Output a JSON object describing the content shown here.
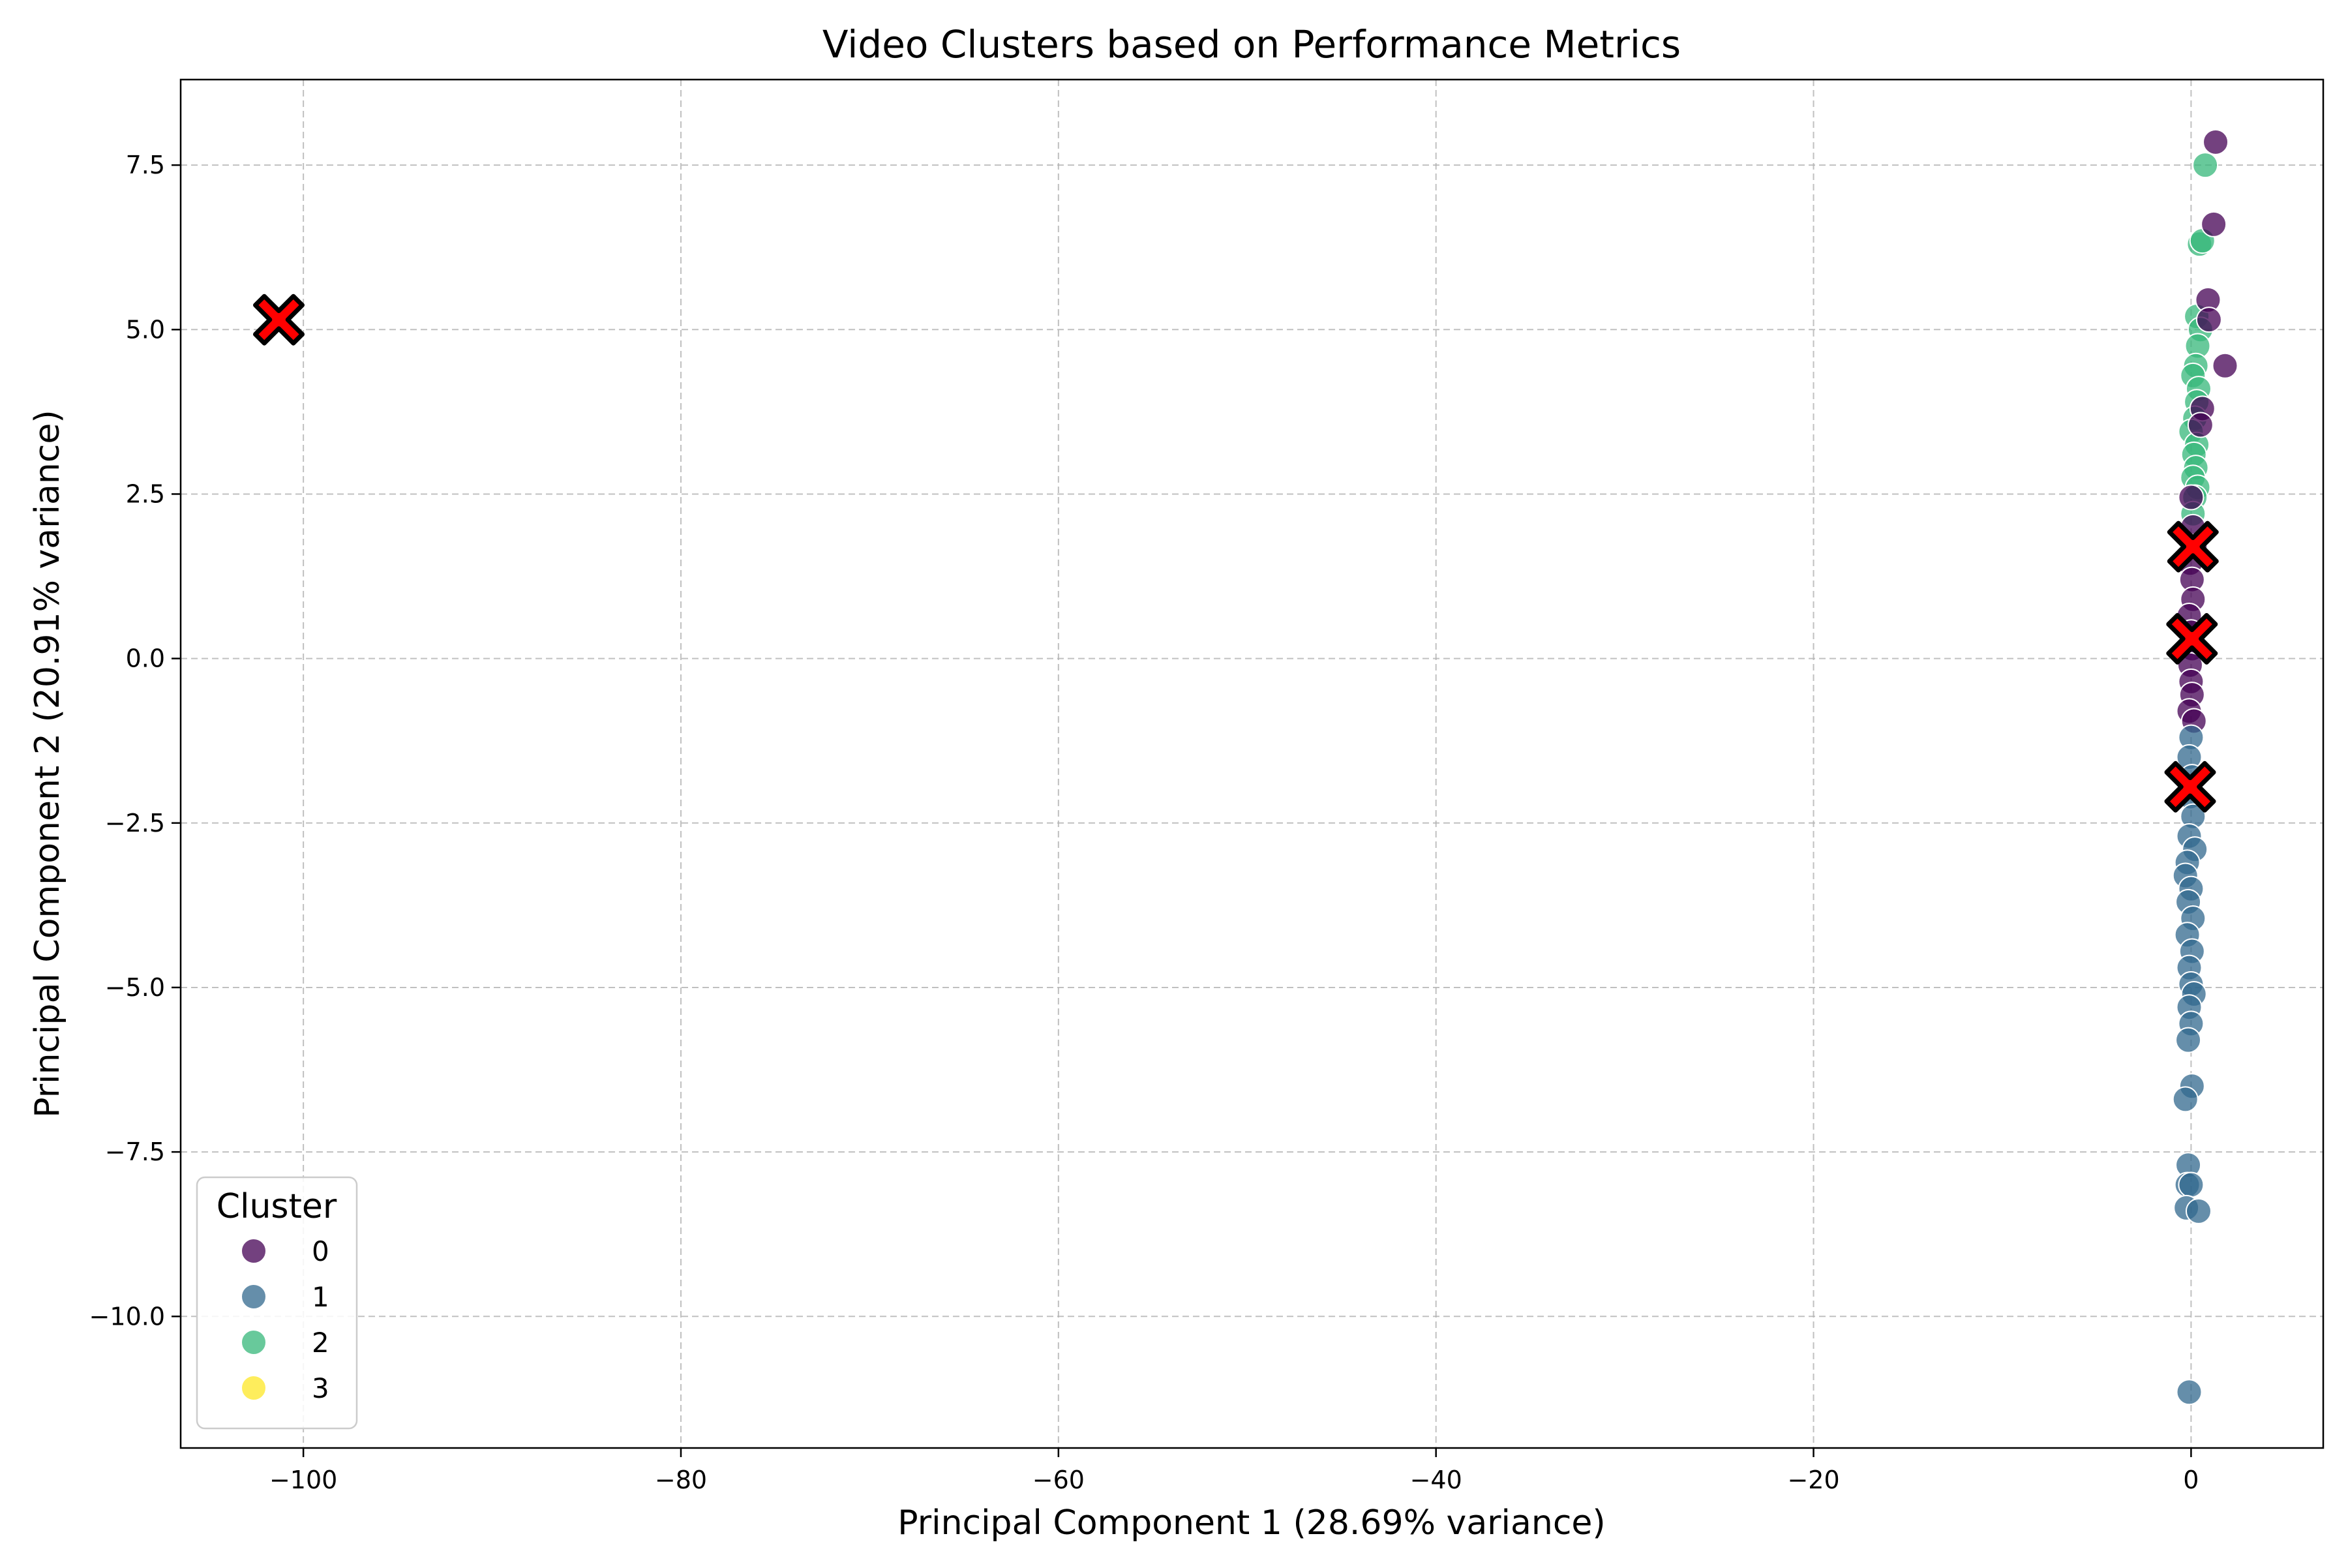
{
  "chart_data": {
    "type": "scatter",
    "title": "Video Clusters based on Performance Metrics",
    "xlabel": "Principal Component 1 (28.69% variance)",
    "ylabel": "Principal Component 2 (20.91% variance)",
    "xlim": [
      -106.5,
      7
    ],
    "ylim": [
      -12,
      8.8
    ],
    "xticks": [
      -100,
      -80,
      -60,
      -40,
      -20,
      0
    ],
    "xtick_labels": [
      "−100",
      "−80",
      "−60",
      "−40",
      "−20",
      "0"
    ],
    "yticks": [
      -10,
      -7.5,
      -5,
      -2.5,
      0,
      2.5,
      5,
      7.5
    ],
    "ytick_labels": [
      "−10.0",
      "−7.5",
      "−5.0",
      "−2.5",
      "0.0",
      "2.5",
      "5.0",
      "7.5"
    ],
    "grid": true,
    "legend": {
      "title": "Cluster",
      "placement": "lower-left",
      "entries": [
        "0",
        "1",
        "2",
        "3"
      ]
    },
    "colors": {
      "cluster_0": "#440154",
      "cluster_1": "#31688e",
      "cluster_2": "#35b779",
      "cluster_3": "#fde725",
      "centroid_fill": "#ff0000",
      "centroid_edge": "#000000",
      "grid": "#b0b0b0"
    },
    "series": [
      {
        "name": "0",
        "color": "#440154",
        "points": [
          [
            1.3,
            7.85
          ],
          [
            1.2,
            6.6
          ],
          [
            0.9,
            5.45
          ],
          [
            0.95,
            5.15
          ],
          [
            1.8,
            4.45
          ],
          [
            0.6,
            3.8
          ],
          [
            0.5,
            3.55
          ],
          [
            0.0,
            2.45
          ],
          [
            0.1,
            2.0
          ],
          [
            0.2,
            1.7
          ],
          [
            -0.05,
            1.45
          ],
          [
            0.05,
            1.2
          ],
          [
            0.1,
            0.9
          ],
          [
            -0.1,
            0.65
          ],
          [
            0.0,
            0.4
          ],
          [
            0.05,
            0.15
          ],
          [
            -0.05,
            -0.1
          ],
          [
            0.0,
            -0.35
          ],
          [
            0.05,
            -0.55
          ],
          [
            -0.1,
            -0.8
          ],
          [
            0.15,
            -0.95
          ]
        ]
      },
      {
        "name": "1",
        "color": "#31688e",
        "points": [
          [
            0.0,
            -1.2
          ],
          [
            -0.1,
            -1.5
          ],
          [
            0.05,
            -1.8
          ],
          [
            -0.05,
            -2.1
          ],
          [
            0.1,
            -2.4
          ],
          [
            -0.1,
            -2.7
          ],
          [
            0.2,
            -2.9
          ],
          [
            -0.2,
            -3.1
          ],
          [
            -0.3,
            -3.3
          ],
          [
            0.0,
            -3.5
          ],
          [
            -0.15,
            -3.7
          ],
          [
            0.1,
            -3.95
          ],
          [
            -0.2,
            -4.2
          ],
          [
            0.05,
            -4.45
          ],
          [
            -0.1,
            -4.7
          ],
          [
            0.0,
            -4.95
          ],
          [
            0.15,
            -5.1
          ],
          [
            -0.1,
            -5.3
          ],
          [
            0.0,
            -5.55
          ],
          [
            -0.15,
            -5.8
          ],
          [
            0.05,
            -6.5
          ],
          [
            -0.3,
            -6.7
          ],
          [
            -0.15,
            -7.7
          ],
          [
            -0.2,
            -8.0
          ],
          [
            0.0,
            -8.0
          ],
          [
            -0.25,
            -8.35
          ],
          [
            0.4,
            -8.4
          ],
          [
            -0.1,
            -11.15
          ]
        ]
      },
      {
        "name": "2",
        "color": "#35b779",
        "points": [
          [
            0.75,
            7.5
          ],
          [
            0.45,
            6.3
          ],
          [
            0.6,
            6.35
          ],
          [
            0.3,
            5.2
          ],
          [
            0.5,
            5.0
          ],
          [
            0.35,
            4.75
          ],
          [
            0.25,
            4.45
          ],
          [
            0.1,
            4.3
          ],
          [
            0.4,
            4.1
          ],
          [
            0.3,
            3.9
          ],
          [
            0.2,
            3.65
          ],
          [
            0.0,
            3.45
          ],
          [
            0.3,
            3.25
          ],
          [
            0.15,
            3.1
          ],
          [
            0.25,
            2.9
          ],
          [
            0.1,
            2.75
          ],
          [
            0.35,
            2.6
          ],
          [
            0.2,
            2.45
          ],
          [
            0.1,
            2.2
          ]
        ]
      },
      {
        "name": "3",
        "color": "#fde725",
        "points": []
      }
    ],
    "centroids": [
      [
        -101.3,
        5.15
      ],
      [
        0.1,
        1.7
      ],
      [
        0.05,
        0.3
      ],
      [
        -0.05,
        -1.95
      ]
    ]
  }
}
